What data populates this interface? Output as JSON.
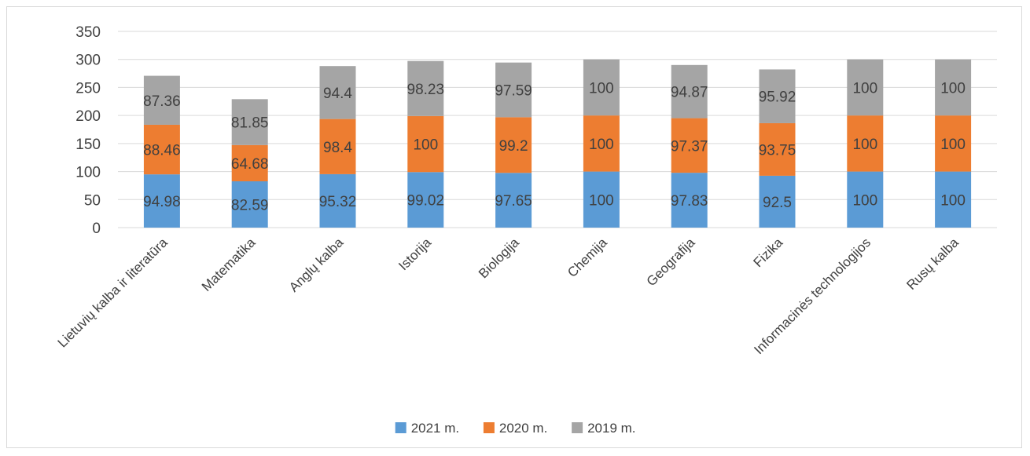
{
  "chart_data": {
    "type": "bar",
    "stacked": true,
    "categories": [
      "Lietuvių kalba ir literatūra",
      "Matematika",
      "Anglų kalba",
      "Istorija",
      "Biologija",
      "Chemija",
      "Geografija",
      "Fizika",
      "Informacinės technologijos",
      "Rusų kalba"
    ],
    "series": [
      {
        "name": "2021 m.",
        "color": "#5b9bd5",
        "values": [
          94.98,
          82.59,
          95.32,
          99.02,
          97.65,
          100,
          97.83,
          92.5,
          100,
          100
        ]
      },
      {
        "name": "2020 m.",
        "color": "#ed7d31",
        "values": [
          88.46,
          64.68,
          98.4,
          100,
          99.2,
          100,
          97.37,
          93.75,
          100,
          100
        ]
      },
      {
        "name": "2019 m.",
        "color": "#a5a5a5",
        "values": [
          87.36,
          81.85,
          94.4,
          98.23,
          97.59,
          100,
          94.87,
          95.92,
          100,
          100
        ]
      }
    ],
    "ylim": [
      0,
      350
    ],
    "yticks": [
      0,
      50,
      100,
      150,
      200,
      250,
      300,
      350
    ],
    "grid": true,
    "legend": "bottom"
  }
}
